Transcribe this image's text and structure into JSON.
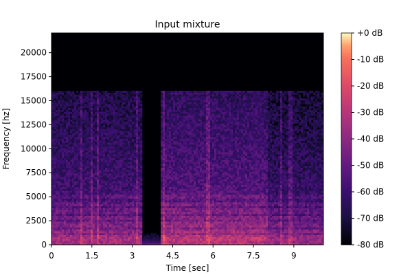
{
  "chart_data": {
    "type": "heatmap",
    "subtype": "spectrogram",
    "title": "Input mixture",
    "xlabel": "Time [sec]",
    "ylabel": "Frequency [hz]",
    "xlim": [
      0,
      10.1
    ],
    "ylim": [
      0,
      22050
    ],
    "xticks": [
      0,
      1.5,
      3,
      4.5,
      6,
      7.5,
      9
    ],
    "xtick_labels": [
      "0",
      "1.5",
      "3",
      "4.5",
      "6",
      "7.5",
      "9"
    ],
    "yticks": [
      0,
      2500,
      5000,
      7500,
      10000,
      12500,
      15000,
      17500,
      20000
    ],
    "ytick_labels": [
      "0",
      "2500",
      "5000",
      "7500",
      "10000",
      "12500",
      "15000",
      "17500",
      "20000"
    ],
    "colormap": "magma",
    "colorbar": {
      "min": -80,
      "max": 0,
      "ticks": [
        0,
        -10,
        -20,
        -30,
        -40,
        -50,
        -60,
        -70,
        -80
      ],
      "tick_labels": [
        "+0 dB",
        "-10 dB",
        "-20 dB",
        "-30 dB",
        "-40 dB",
        "-50 dB",
        "-60 dB",
        "-70 dB",
        "-80 dB"
      ]
    },
    "segments": [
      {
        "start": 0.0,
        "end": 4.05,
        "cutoff_hz": 16000,
        "level_db": -55
      },
      {
        "start": 4.05,
        "end": 8.0,
        "cutoff_hz": 16000,
        "level_db": -50
      },
      {
        "start": 8.0,
        "end": 10.1,
        "cutoff_hz": 16000,
        "level_db": -58
      }
    ],
    "quiet_gaps": [
      {
        "start": 3.35,
        "end": 4.05,
        "level_db": -78
      }
    ],
    "harmonic_bands_hz": [
      700,
      1400,
      2100,
      2800,
      3500,
      4200,
      5000
    ]
  }
}
